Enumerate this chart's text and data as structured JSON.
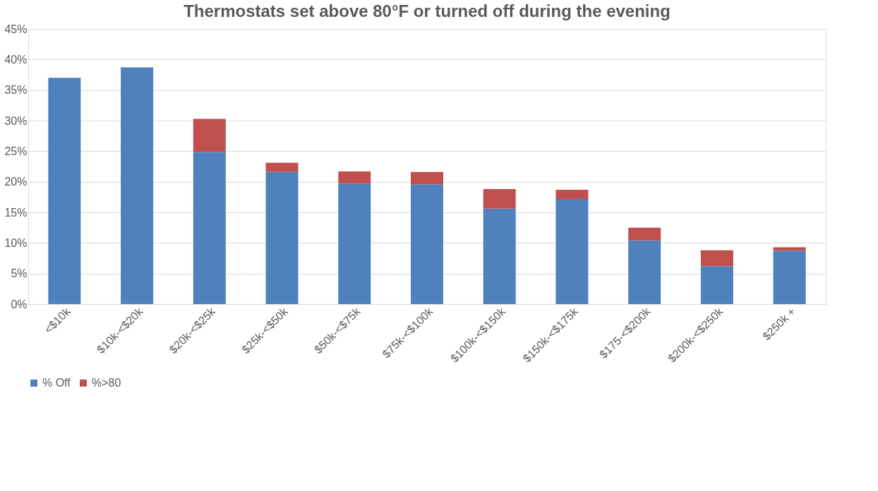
{
  "chart_data": {
    "type": "bar",
    "title": "Thermostats set above 80°F or turned off during the evening",
    "stacked": true,
    "categories": [
      "<$10k",
      "$10k-<$20k",
      "$20k-<$25k",
      "$25k-<$50k",
      "$50k-<$75k",
      "$75k-<$100k",
      "$100k-<$150k",
      "$150k-<$175k",
      "$175-<$200k",
      "$200k-<$250k",
      "$250k +"
    ],
    "series": [
      {
        "name": "% Off",
        "color": "#4f81bd",
        "values": [
          37.0,
          38.7,
          24.9,
          21.6,
          19.7,
          19.6,
          15.6,
          17.2,
          10.4,
          6.2,
          8.7
        ]
      },
      {
        "name": "%>80",
        "color": "#c0504d",
        "values": [
          0,
          0,
          5.4,
          1.5,
          2.0,
          2.0,
          3.2,
          1.5,
          2.1,
          2.6,
          0.6
        ]
      }
    ],
    "ylim": [
      0,
      45
    ],
    "yticks": [
      {
        "value": 0,
        "label": "0%"
      },
      {
        "value": 5,
        "label": "5%"
      },
      {
        "value": 10,
        "label": "10%"
      },
      {
        "value": 15,
        "label": "15%"
      },
      {
        "value": 20,
        "label": "20%"
      },
      {
        "value": 25,
        "label": "25%"
      },
      {
        "value": 30,
        "label": "30%"
      },
      {
        "value": 35,
        "label": "35%"
      },
      {
        "value": 40,
        "label": "40%"
      },
      {
        "value": 45,
        "label": "45%"
      }
    ],
    "grid": "y",
    "legend": "bottom"
  }
}
